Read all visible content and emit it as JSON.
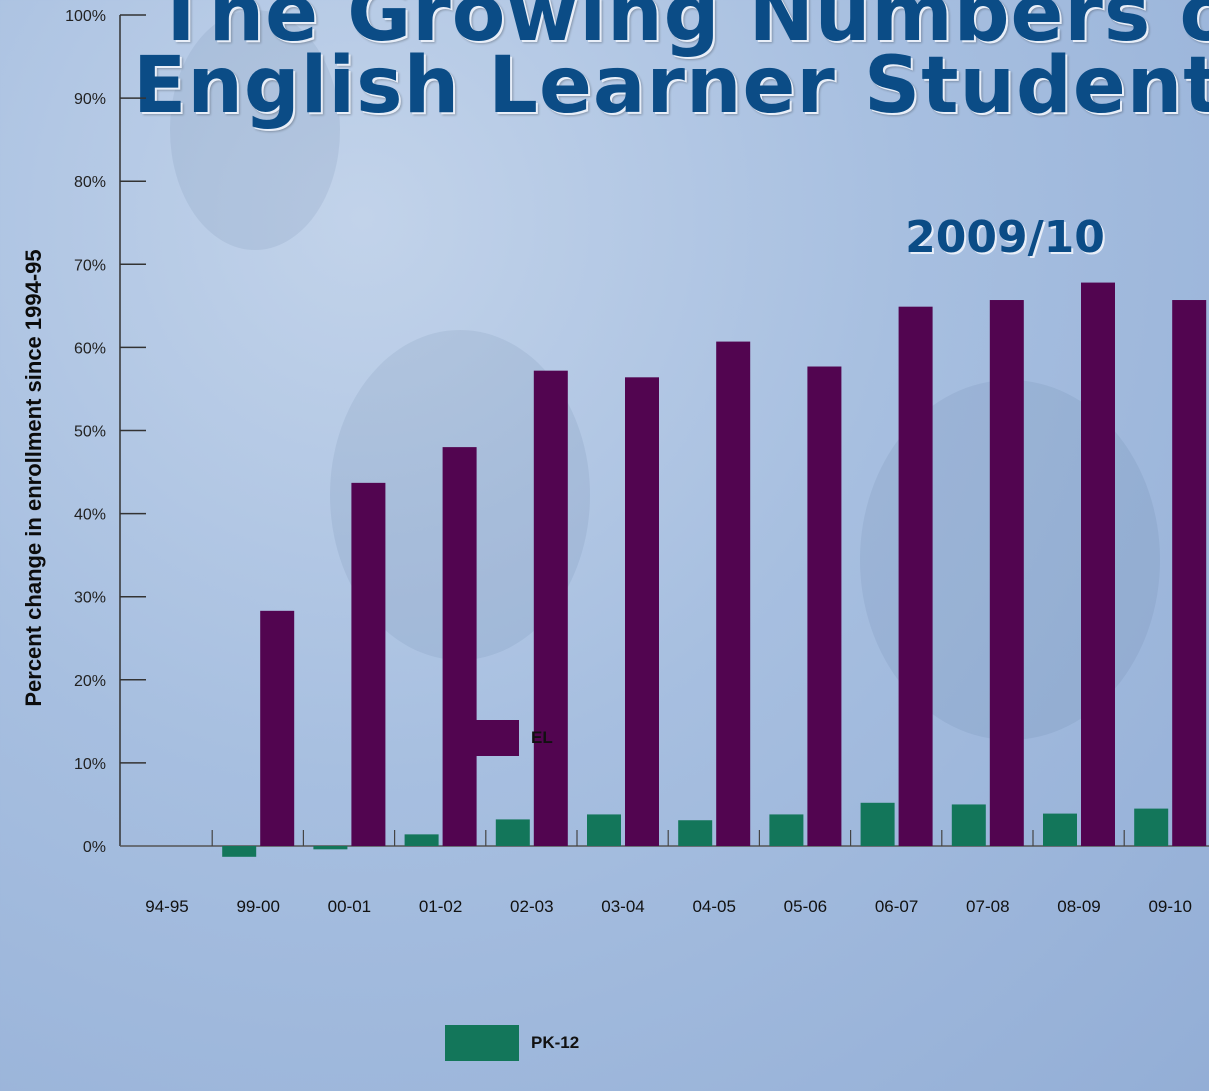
{
  "title": [
    "The Growing Numbers of",
    "English Learner Students"
  ],
  "subtitle": "2009/10",
  "chart_data": {
    "type": "bar",
    "ylabel": "Percent change in enrollment since 1994-95",
    "xlabel": "",
    "ylim": [
      0,
      100
    ],
    "yticks": [
      "0%",
      "10%",
      "20%",
      "30%",
      "40%",
      "50%",
      "60%",
      "70%",
      "80%",
      "90%",
      "100%"
    ],
    "categories": [
      "94-95",
      "99-00",
      "00-01",
      "01-02",
      "02-03",
      "03-04",
      "04-05",
      "05-06",
      "06-07",
      "07-08",
      "08-09",
      "09-10"
    ],
    "series": [
      {
        "name": "PK-12",
        "color": "#13765a",
        "values": [
          0,
          -1.3,
          -0.4,
          1.4,
          3.2,
          3.8,
          3.1,
          3.8,
          5.2,
          5.0,
          3.9,
          4.5
        ]
      },
      {
        "name": "EL",
        "color": "#520550",
        "values": [
          0,
          28.3,
          43.7,
          48.0,
          57.2,
          56.4,
          60.7,
          57.7,
          64.9,
          65.7,
          67.8,
          65.7
        ]
      }
    ],
    "legend": {
      "position": "bottom-center",
      "entries": [
        {
          "label": "EL",
          "color": "#520550"
        },
        {
          "label": "PK-12",
          "color": "#13765a"
        }
      ]
    },
    "grid": false
  }
}
